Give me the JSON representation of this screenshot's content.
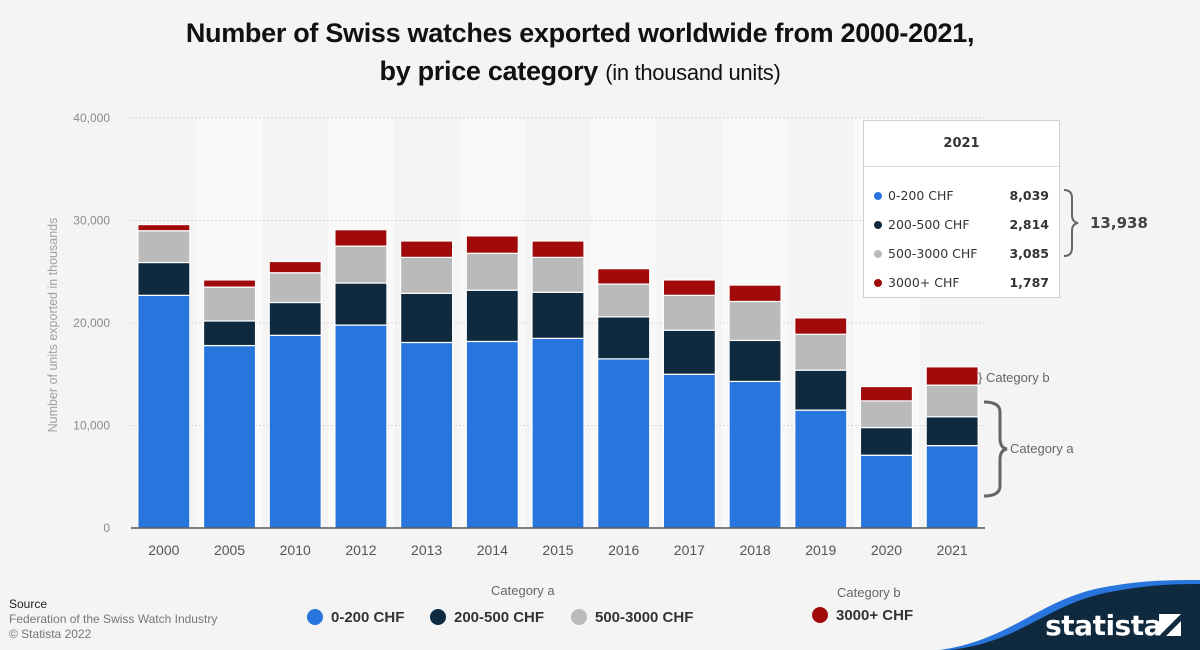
{
  "title": {
    "main": "Number of Swiss watches exported worldwide from 2000-2021,",
    "line2_bold": "by price category",
    "line2_sub": "(in thousand units)"
  },
  "source": {
    "heading": "Source",
    "text": "Federation of the Swiss Watch Industry",
    "copyright": "© Statista 2022"
  },
  "brand": {
    "name": "statista"
  },
  "colors": {
    "series_0_200": "#2876dd",
    "series_200_500": "#0f2a3f",
    "series_500_3000": "#bababa",
    "series_3000_plus": "#a10a0a",
    "background": "#f4f4f4"
  },
  "legend": {
    "category_a_label": "Category a",
    "category_b_label": "Category b",
    "items": [
      {
        "label": "0-200 CHF",
        "color": "#2876dd"
      },
      {
        "label": "200-500 CHF",
        "color": "#0f2a3f"
      },
      {
        "label": "500-3000 CHF",
        "color": "#bababa"
      },
      {
        "label": "3000+ CHF",
        "color": "#a10a0a"
      }
    ]
  },
  "annotations": {
    "category_a": "Category a",
    "category_b": "} Category b"
  },
  "tooltip": {
    "title": "2021",
    "rows": [
      {
        "label": "0-200 CHF",
        "value": "8,039",
        "color": "#2876dd"
      },
      {
        "label": "200-500 CHF",
        "value": "2,814",
        "color": "#0f2a3f"
      },
      {
        "label": "500-3000 CHF",
        "value": "3,085",
        "color": "#bababa"
      },
      {
        "label": "3000+ CHF",
        "value": "1,787",
        "color": "#a10a0a"
      }
    ],
    "bracket_total": "13,938"
  },
  "chart_data": {
    "type": "bar",
    "stacked": true,
    "title": "Number of Swiss watches exported worldwide from 2000-2021, by price category (in thousand units)",
    "xlabel": "",
    "ylabel": "Number of units exported in thousands",
    "ylim": [
      0,
      40000
    ],
    "yticks": [
      0,
      10000,
      20000,
      30000,
      40000
    ],
    "ytick_labels": [
      "0",
      "10,000",
      "20,000",
      "30,000",
      "40,000"
    ],
    "grid": true,
    "legend_position": "bottom",
    "categories": [
      "2000",
      "2005",
      "2010",
      "2012",
      "2013",
      "2014",
      "2015",
      "2016",
      "2017",
      "2018",
      "2019",
      "2020",
      "2021"
    ],
    "series": [
      {
        "name": "0-200 CHF",
        "group": "Category a",
        "color": "#2876dd",
        "values": [
          22700,
          17800,
          18800,
          19800,
          18100,
          18200,
          18500,
          16500,
          15000,
          14300,
          11500,
          7100,
          8039
        ]
      },
      {
        "name": "200-500 CHF",
        "group": "Category a",
        "color": "#0f2a3f",
        "values": [
          3200,
          2400,
          3200,
          4100,
          4800,
          5000,
          4500,
          4100,
          4300,
          4000,
          3900,
          2700,
          2814
        ]
      },
      {
        "name": "500-3000 CHF",
        "group": "Category a",
        "color": "#bababa",
        "values": [
          3100,
          3300,
          2900,
          3600,
          3500,
          3600,
          3400,
          3200,
          3400,
          3800,
          3500,
          2600,
          3085
        ]
      },
      {
        "name": "3000+ CHF",
        "group": "Category b",
        "color": "#a10a0a",
        "values": [
          600,
          700,
          1100,
          1600,
          1600,
          1700,
          1600,
          1500,
          1500,
          1600,
          1600,
          1400,
          1787
        ]
      }
    ]
  }
}
